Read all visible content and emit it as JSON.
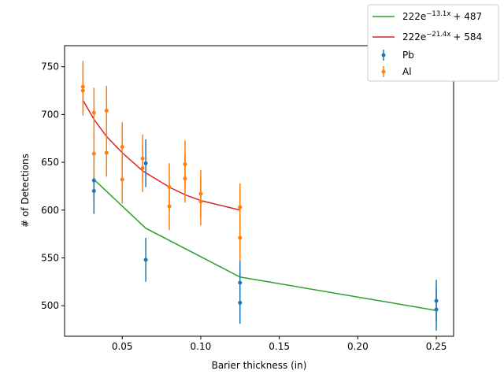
{
  "chart_data": {
    "type": "scatter",
    "xlabel": "Barier thickness (in)",
    "ylabel": "# of Detections",
    "xlim": [
      0.0133,
      0.261
    ],
    "ylim": [
      468,
      772
    ],
    "xticks": [
      0.05,
      0.1,
      0.15,
      0.2,
      0.25
    ],
    "xtick_labels": [
      "0.05",
      "0.10",
      "0.15",
      "0.20",
      "0.25"
    ],
    "yticks": [
      500,
      550,
      600,
      650,
      700,
      750
    ],
    "ytick_labels": [
      "500",
      "550",
      "600",
      "650",
      "700",
      "750"
    ],
    "legend_position": "top-right",
    "grid": false,
    "series": [
      {
        "name": "Pb",
        "kind": "errorbar",
        "color": "#1f77b4",
        "points": [
          {
            "x": 0.032,
            "y": 620,
            "err": 24
          },
          {
            "x": 0.032,
            "y": 631,
            "err": 24
          },
          {
            "x": 0.065,
            "y": 548,
            "err": 23
          },
          {
            "x": 0.065,
            "y": 649,
            "err": 25
          },
          {
            "x": 0.125,
            "y": 503,
            "err": 22
          },
          {
            "x": 0.125,
            "y": 524,
            "err": 23
          },
          {
            "x": 0.25,
            "y": 496,
            "err": 22
          },
          {
            "x": 0.25,
            "y": 505,
            "err": 22
          }
        ]
      },
      {
        "name": "Al",
        "kind": "errorbar",
        "color": "#ff7f0e",
        "points": [
          {
            "x": 0.025,
            "y": 725,
            "err": 26
          },
          {
            "x": 0.025,
            "y": 729,
            "err": 27
          },
          {
            "x": 0.032,
            "y": 659,
            "err": 25
          },
          {
            "x": 0.032,
            "y": 702,
            "err": 26
          },
          {
            "x": 0.04,
            "y": 660,
            "err": 25
          },
          {
            "x": 0.04,
            "y": 704,
            "err": 26
          },
          {
            "x": 0.05,
            "y": 632,
            "err": 25
          },
          {
            "x": 0.05,
            "y": 666,
            "err": 26
          },
          {
            "x": 0.063,
            "y": 644,
            "err": 25
          },
          {
            "x": 0.063,
            "y": 654,
            "err": 25
          },
          {
            "x": 0.08,
            "y": 604,
            "err": 25
          },
          {
            "x": 0.08,
            "y": 624,
            "err": 25
          },
          {
            "x": 0.09,
            "y": 633,
            "err": 25
          },
          {
            "x": 0.09,
            "y": 648,
            "err": 25
          },
          {
            "x": 0.1,
            "y": 609,
            "err": 25
          },
          {
            "x": 0.1,
            "y": 617,
            "err": 25
          },
          {
            "x": 0.125,
            "y": 571,
            "err": 24
          },
          {
            "x": 0.125,
            "y": 603,
            "err": 25
          }
        ]
      },
      {
        "name": "222e^{-13.1x} + 487",
        "kind": "fit",
        "color": "#2ca02c",
        "legend_base": "222e",
        "legend_exp": "−13.1x",
        "legend_tail": "+ 487",
        "x": [
          0.032,
          0.065,
          0.125,
          0.25
        ],
        "y": [
          632,
          581,
          530,
          495
        ]
      },
      {
        "name": "222e^{-21.4x} + 584",
        "kind": "fit",
        "color": "#d62728",
        "legend_base": "222e",
        "legend_exp": "−21.4x",
        "legend_tail": "+ 584",
        "x": [
          0.025,
          0.032,
          0.04,
          0.05,
          0.063,
          0.08,
          0.09,
          0.1,
          0.125
        ],
        "y": [
          715,
          695,
          677,
          660,
          641,
          624,
          616,
          610,
          600
        ]
      }
    ]
  }
}
